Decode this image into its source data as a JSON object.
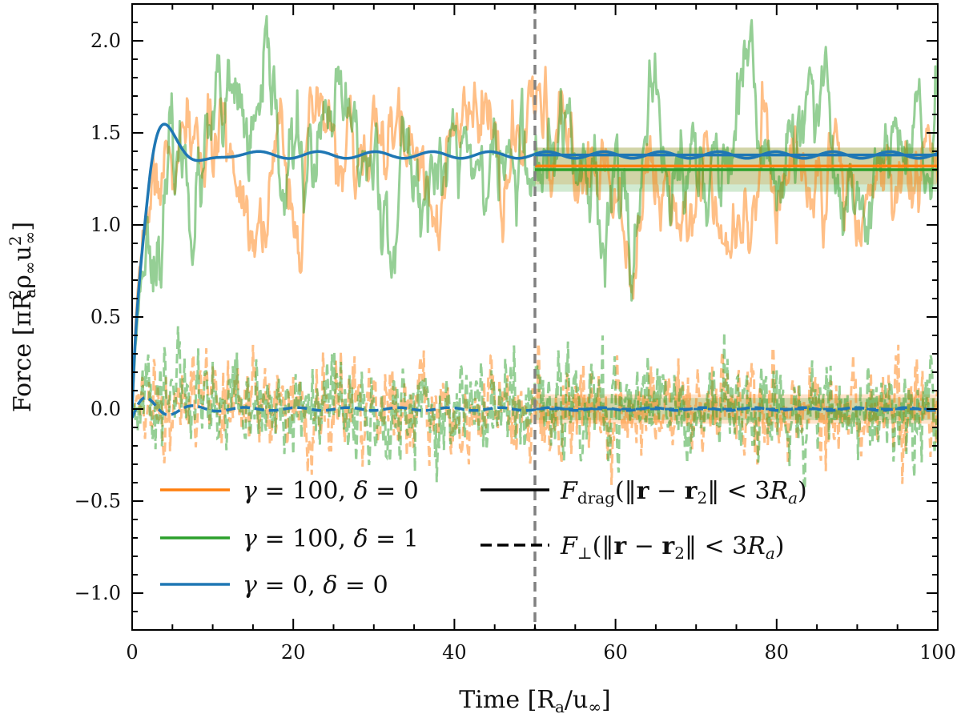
{
  "chart_data": {
    "type": "line",
    "xlabel": "Time [R_a/u_∞]",
    "ylabel": "Force [πR_a²ρ_∞u_∞²]",
    "xlim": [
      0,
      100
    ],
    "ylim": [
      -1.2,
      2.2
    ],
    "xticks": [
      0,
      20,
      40,
      60,
      80,
      100
    ],
    "yticks": [
      -1.0,
      -0.5,
      0.0,
      0.5,
      1.0,
      1.5,
      2.0
    ],
    "xtick_labels": [
      "0",
      "20",
      "40",
      "60",
      "80",
      "100"
    ],
    "ytick_labels": [
      "−1.0",
      "−0.5",
      "0.0",
      "0.5",
      "1.0",
      "1.5",
      "2.0"
    ],
    "vline_x": 50,
    "colors": {
      "orange": "#ff7f0e",
      "green": "#2ca02c",
      "blue": "#1f77b4",
      "vline": "#808080"
    },
    "series": [
      {
        "name": "γ = 100, δ = 0",
        "color": "#ff7f0e",
        "kind": "noisy",
        "drag_mean": 1.32,
        "drag_std": 0.22,
        "drag_band": [
          1.22,
          1.42
        ],
        "perp_mean": 0.0,
        "perp_std": 0.13,
        "perp_band": [
          -0.08,
          0.08
        ],
        "seed": 7
      },
      {
        "name": "γ = 100, δ = 1",
        "color": "#2ca02c",
        "kind": "noisy",
        "drag_mean": 1.3,
        "drag_std": 0.26,
        "drag_band": [
          1.18,
          1.42
        ],
        "perp_mean": 0.0,
        "perp_std": 0.13,
        "perp_band": [
          -0.06,
          0.06
        ],
        "seed": 23
      },
      {
        "name": "γ = 0, δ = 0",
        "color": "#1f77b4",
        "kind": "smooth",
        "drag_mean": 1.38,
        "perp_mean": 0.0,
        "overshoot_peak": 1.52,
        "overshoot_time": 4.5
      }
    ],
    "means_after_vline": [
      {
        "series": "γ = 100, δ = 0",
        "drag": 1.32,
        "perp": 0.0
      },
      {
        "series": "γ = 100, δ = 1",
        "drag": 1.3,
        "perp": 0.0
      },
      {
        "series": "γ = 0, δ = 0",
        "drag": 1.38,
        "perp": 0.0
      }
    ],
    "legend": {
      "placement": "lower-left",
      "series_labels": [
        {
          "gamma": "100",
          "delta": "0",
          "color": "#ff7f0e"
        },
        {
          "gamma": "100",
          "delta": "1",
          "color": "#2ca02c"
        },
        {
          "gamma": "0",
          "delta": "0",
          "color": "#1f77b4"
        }
      ],
      "style_labels": [
        {
          "style": "solid",
          "text": "F_drag(‖r − r₂‖ < 3R_a)"
        },
        {
          "style": "dashed",
          "text": "F_⊥(‖r − r₂‖ < 3R_a)"
        }
      ]
    }
  }
}
